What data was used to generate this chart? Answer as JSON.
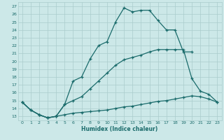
{
  "xlabel": "Humidex (Indice chaleur)",
  "bg_color": "#cce8e8",
  "grid_color": "#aacccc",
  "line_color": "#1a6b6b",
  "xlim": [
    -0.5,
    23.5
  ],
  "ylim": [
    12.5,
    27.5
  ],
  "xticks": [
    0,
    1,
    2,
    3,
    4,
    5,
    6,
    7,
    8,
    9,
    10,
    11,
    12,
    13,
    14,
    15,
    16,
    17,
    18,
    19,
    20,
    21,
    22,
    23
  ],
  "yticks": [
    13,
    14,
    15,
    16,
    17,
    18,
    19,
    20,
    21,
    22,
    23,
    24,
    25,
    26,
    27
  ],
  "line1_x": [
    0,
    1,
    2,
    3,
    4,
    5,
    6,
    7,
    8,
    9,
    10,
    11,
    12,
    13,
    14,
    15,
    16,
    17,
    18,
    19,
    20,
    21,
    22,
    23
  ],
  "line1_y": [
    14.8,
    13.8,
    13.2,
    12.8,
    13.0,
    14.5,
    17.5,
    18.0,
    20.3,
    22.0,
    22.5,
    25.0,
    26.8,
    26.3,
    26.5,
    26.5,
    25.2,
    24.0,
    24.0,
    21.2,
    21.2,
    null,
    null,
    null
  ],
  "line2_x": [
    0,
    1,
    2,
    3,
    4,
    5,
    6,
    7,
    8,
    9,
    10,
    11,
    12,
    13,
    14,
    15,
    16,
    17,
    18,
    19,
    20,
    21,
    22,
    23
  ],
  "line2_y": [
    14.8,
    13.8,
    13.2,
    12.8,
    13.0,
    14.5,
    15.0,
    15.5,
    16.5,
    17.5,
    18.5,
    19.5,
    20.2,
    20.5,
    20.8,
    21.2,
    21.5,
    21.5,
    21.5,
    21.5,
    17.8,
    16.2,
    15.8,
    14.8
  ],
  "line3_x": [
    0,
    1,
    2,
    3,
    4,
    5,
    6,
    7,
    8,
    9,
    10,
    11,
    12,
    13,
    14,
    15,
    16,
    17,
    18,
    19,
    20,
    21,
    22,
    23
  ],
  "line3_y": [
    14.8,
    13.8,
    13.2,
    12.8,
    13.0,
    13.2,
    13.4,
    13.5,
    13.6,
    13.7,
    13.8,
    14.0,
    14.2,
    14.3,
    14.5,
    14.7,
    14.9,
    15.0,
    15.2,
    15.4,
    15.6,
    15.5,
    15.2,
    14.8
  ]
}
